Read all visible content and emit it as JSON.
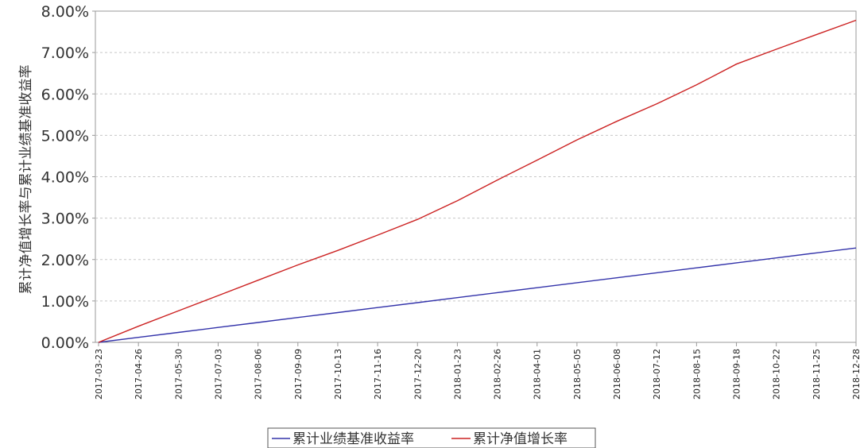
{
  "chart_data": {
    "type": "line",
    "title": "",
    "xlabel": "",
    "ylabel": "累计净值增长率与累计业绩基准收益率",
    "ylim": [
      0,
      8
    ],
    "y_unit": "%",
    "y_ticks": [
      "0.00%",
      "1.00%",
      "2.00%",
      "3.00%",
      "4.00%",
      "5.00%",
      "6.00%",
      "7.00%",
      "8.00%"
    ],
    "x_ticks": [
      "2017-03-23",
      "2017-04-26",
      "2017-05-30",
      "2017-07-03",
      "2017-08-06",
      "2017-09-09",
      "2017-10-13",
      "2017-11-16",
      "2017-12-20",
      "2018-01-23",
      "2018-02-26",
      "2018-04-01",
      "2018-05-05",
      "2018-06-08",
      "2018-07-12",
      "2018-08-15",
      "2018-09-18",
      "2018-10-22",
      "2018-11-25",
      "2018-12-28"
    ],
    "grid": true,
    "legend_position": "bottom",
    "series": [
      {
        "name": "累计业绩基准收益率",
        "color": "#3333aa",
        "values": [
          0.0,
          0.12,
          0.24,
          0.36,
          0.48,
          0.6,
          0.72,
          0.84,
          0.96,
          1.08,
          1.2,
          1.32,
          1.44,
          1.56,
          1.68,
          1.8,
          1.92,
          2.04,
          2.16,
          2.28
        ]
      },
      {
        "name": "累计净值增长率",
        "color": "#cc2222",
        "values": [
          0.0,
          0.39,
          0.76,
          1.13,
          1.5,
          1.87,
          2.22,
          2.59,
          2.97,
          3.42,
          3.92,
          4.4,
          4.89,
          5.34,
          5.76,
          6.22,
          6.72,
          7.08,
          7.43,
          7.78
        ]
      }
    ]
  }
}
